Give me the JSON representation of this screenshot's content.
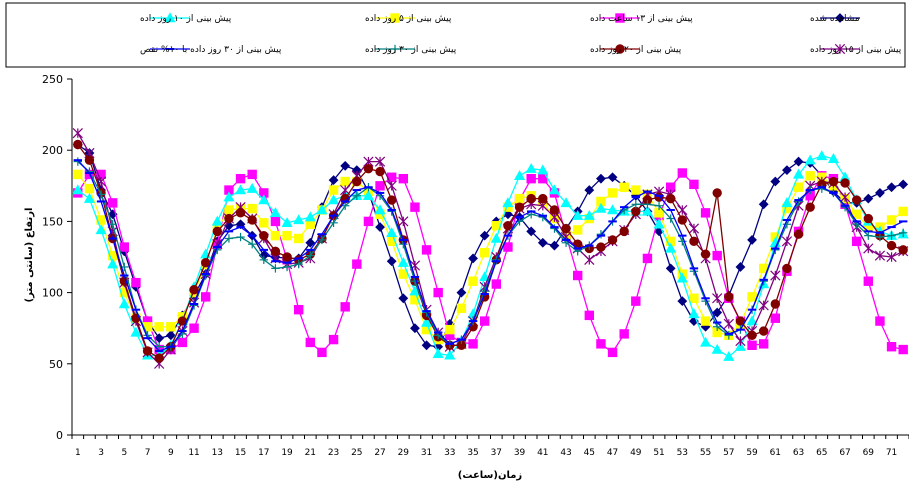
{
  "chart_data": {
    "type": "line",
    "xlabel": "زمان(ساعت)",
    "ylabel": "ارتفاع (سانتی متر)",
    "ylim": [
      0,
      250
    ],
    "yticks": [
      0,
      50,
      100,
      150,
      200,
      250
    ],
    "xlim": [
      1,
      72
    ],
    "xticks": [
      1,
      3,
      5,
      7,
      9,
      11,
      13,
      15,
      17,
      19,
      21,
      23,
      25,
      27,
      29,
      31,
      33,
      35,
      37,
      39,
      41,
      43,
      45,
      47,
      49,
      51,
      53,
      55,
      57,
      59,
      61,
      63,
      65,
      67,
      69,
      71
    ],
    "grid": false,
    "legend_position": "top",
    "series": [
      {
        "name": "مشاهده شده",
        "color": "#000080",
        "marker": "diamond",
        "values": [
          204,
          198,
          172,
          155,
          129,
          104,
          80,
          68,
          70,
          84,
          98,
          113,
          136,
          147,
          148,
          140,
          126,
          125,
          124,
          124,
          135,
          160,
          179,
          189,
          186,
          171,
          146,
          122,
          96,
          75,
          63,
          62,
          78,
          100,
          124,
          140,
          150,
          155,
          153,
          143,
          135,
          133,
          145,
          157,
          172,
          180,
          181,
          175,
          168,
          157,
          143,
          117,
          94,
          80,
          76,
          86,
          98,
          118,
          137,
          162,
          178,
          186,
          192,
          191,
          182,
          171,
          163,
          163,
          166,
          170,
          174,
          176
        ]
      },
      {
        "name": "پیش بینی از ۱۳ ساعت داده",
        "color": "#FF00FF",
        "marker": "square",
        "values": [
          170,
          183,
          183,
          163,
          132,
          107,
          80,
          60,
          60,
          65,
          75,
          97,
          134,
          172,
          180,
          183,
          170,
          150,
          123,
          88,
          65,
          58,
          67,
          90,
          120,
          150,
          175,
          181,
          180,
          160,
          130,
          100,
          70,
          65,
          64,
          80,
          106,
          132,
          165,
          180,
          180,
          170,
          140,
          112,
          84,
          64,
          58,
          71,
          94,
          124,
          154,
          174,
          184,
          176,
          156,
          126,
          96,
          80,
          63,
          64,
          82,
          115,
          143,
          168,
          182,
          180,
          162,
          136,
          108,
          80,
          62,
          60
        ]
      },
      {
        "name": "پیش بینی از ۵ روز داده",
        "color": "#FFFF00",
        "marker": "square",
        "values": [
          183,
          173,
          151,
          126,
          100,
          82,
          76,
          76,
          76,
          83,
          100,
          120,
          145,
          158,
          159,
          159,
          149,
          140,
          140,
          138,
          148,
          158,
          172,
          178,
          178,
          171,
          155,
          136,
          113,
          95,
          74,
          67,
          74,
          89,
          108,
          128,
          147,
          160,
          166,
          168,
          164,
          152,
          140,
          144,
          152,
          164,
          170,
          174,
          172,
          169,
          156,
          136,
          113,
          96,
          80,
          72,
          70,
          78,
          97,
          117,
          139,
          159,
          174,
          182,
          181,
          175,
          166,
          155,
          146,
          146,
          151,
          157
        ]
      },
      {
        "name": "پیش بینی از ۱۰ روز داده",
        "color": "#00FFFF",
        "marker": "triangle",
        "values": [
          172,
          166,
          144,
          120,
          92,
          72,
          56,
          56,
          63,
          80,
          104,
          127,
          150,
          167,
          172,
          173,
          165,
          156,
          149,
          151,
          153,
          158,
          165,
          168,
          168,
          168,
          158,
          142,
          121,
          101,
          79,
          57,
          56,
          66,
          85,
          111,
          138,
          163,
          182,
          187,
          186,
          172,
          163,
          154,
          154,
          159,
          158,
          157,
          157,
          157,
          148,
          131,
          110,
          85,
          65,
          60,
          55,
          62,
          80,
          106,
          135,
          163,
          183,
          193,
          196,
          194,
          181,
          165,
          150,
          143,
          140,
          141
        ]
      },
      {
        "name": "پیش بینی از ۱۵ روز داده",
        "color": "#800080",
        "marker": "star",
        "values": [
          212,
          198,
          178,
          143,
          107,
          80,
          58,
          50,
          60,
          73,
          93,
          113,
          134,
          152,
          160,
          152,
          138,
          124,
          120,
          121,
          124,
          138,
          155,
          172,
          182,
          192,
          192,
          175,
          150,
          119,
          88,
          72,
          62,
          64,
          80,
          104,
          125,
          145,
          159,
          162,
          161,
          153,
          139,
          131,
          123,
          129,
          136,
          144,
          155,
          169,
          171,
          169,
          158,
          145,
          124,
          96,
          78,
          66,
          73,
          91,
          112,
          136,
          161,
          175,
          178,
          177,
          167,
          146,
          131,
          126,
          125,
          129
        ]
      },
      {
        "name": "پیش بینی از ۲۰ روز داده",
        "color": "#800000",
        "marker": "circle",
        "values": [
          204,
          193,
          170,
          138,
          108,
          82,
          59,
          54,
          62,
          80,
          102,
          121,
          143,
          152,
          156,
          151,
          140,
          129,
          125,
          123,
          127,
          138,
          154,
          166,
          178,
          187,
          185,
          165,
          137,
          108,
          84,
          69,
          63,
          63,
          76,
          97,
          123,
          147,
          160,
          166,
          166,
          158,
          145,
          134,
          131,
          132,
          137,
          143,
          157,
          165,
          167,
          166,
          151,
          136,
          127,
          170,
          97,
          80,
          70,
          73,
          92,
          117,
          141,
          160,
          176,
          178,
          177,
          165,
          152,
          140,
          133,
          130
        ]
      },
      {
        "name": "پیش بینی از ۳۰ روز داده",
        "color": "#008080",
        "marker": "plus",
        "values": [
          192,
          185,
          169,
          148,
          118,
          88,
          70,
          62,
          62,
          71,
          91,
          112,
          130,
          138,
          139,
          134,
          123,
          117,
          118,
          120,
          126,
          137,
          149,
          161,
          168,
          174,
          168,
          157,
          134,
          108,
          86,
          70,
          64,
          67,
          80,
          101,
          123,
          140,
          150,
          155,
          153,
          145,
          135,
          129,
          133,
          141,
          150,
          158,
          162,
          162,
          161,
          152,
          136,
          115,
          94,
          76,
          70,
          74,
          88,
          108,
          130,
          148,
          164,
          172,
          173,
          170,
          160,
          148,
          140,
          139,
          140,
          142
        ]
      },
      {
        "name": "پیش بینی از ۳۰ روز داده با ۱۰% نقص",
        "color": "#0000FF",
        "marker": "dash",
        "values": [
          193,
          184,
          164,
          138,
          112,
          88,
          68,
          59,
          62,
          73,
          92,
          113,
          132,
          143,
          146,
          140,
          130,
          122,
          121,
          124,
          130,
          141,
          154,
          164,
          172,
          174,
          170,
          158,
          137,
          111,
          87,
          72,
          64,
          67,
          80,
          99,
          122,
          140,
          153,
          157,
          154,
          146,
          137,
          131,
          133,
          140,
          150,
          160,
          167,
          171,
          168,
          158,
          140,
          117,
          96,
          79,
          71,
          74,
          88,
          109,
          131,
          151,
          165,
          172,
          174,
          170,
          161,
          150,
          143,
          142,
          146,
          150
        ]
      }
    ]
  }
}
